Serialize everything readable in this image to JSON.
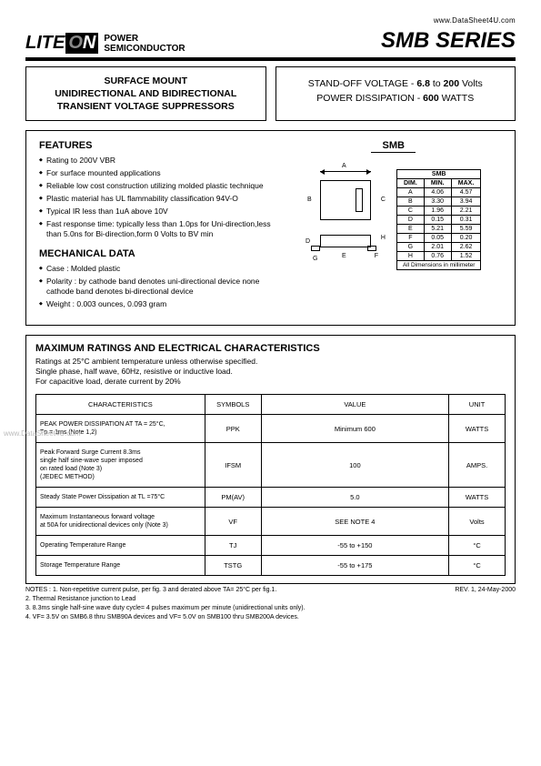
{
  "url": "www.DataSheet4U.com",
  "logo": {
    "t1": "LITE",
    "t2": "N",
    "sub1": "POWER",
    "sub2": "SEMICONDUCTOR"
  },
  "series": "SMB SERIES",
  "box1": {
    "l1": "SURFACE MOUNT",
    "l2": "UNIDIRECTIONAL AND BIDIRECTIONAL",
    "l3": "TRANSIENT VOLTAGE SUPPRESSORS"
  },
  "box2": {
    "l1a": "STAND-OFF VOLTAGE - ",
    "l1b": "6.8",
    "l1c": " to ",
    "l1d": "200",
    "l1e": " Volts",
    "l2a": "POWER DISSIPATION  - ",
    "l2b": "600",
    "l2c": " WATTS"
  },
  "features_h": "FEATURES",
  "features": [
    "Rating to 200V VBR",
    "For surface mounted applications",
    "Reliable low cost construction utilizing molded plastic technique",
    "Plastic material has UL flammability classification 94V-O",
    "Typical IR less than 1uA above 10V",
    "Fast response time: typically less than 1.0ps for Uni-direction,less than 5.0ns for Bi-direction,form 0 Volts to BV min"
  ],
  "mech_h": "MECHANICAL DATA",
  "mech": [
    "Case : Molded plastic",
    "Polarity : by cathode band denotes uni-directional device none cathode band denotes bi-directional device",
    "Weight : 0.003 ounces, 0.093 gram"
  ],
  "smb_label": "SMB",
  "dim_head": "SMB",
  "dim_cols": [
    "DIM.",
    "MIN.",
    "MAX."
  ],
  "dims": [
    [
      "A",
      "4.06",
      "4.57"
    ],
    [
      "B",
      "3.30",
      "3.94"
    ],
    [
      "C",
      "1.96",
      "2.21"
    ],
    [
      "D",
      "0.15",
      "0.31"
    ],
    [
      "E",
      "5.21",
      "5.59"
    ],
    [
      "F",
      "0.05",
      "0.20"
    ],
    [
      "G",
      "2.01",
      "2.62"
    ],
    [
      "H",
      "0.76",
      "1.52"
    ]
  ],
  "dim_note": "All Dimensions in millimeter",
  "pkg_letters": {
    "A": "A",
    "B": "B",
    "C": "C",
    "D": "D",
    "E": "E",
    "F": "F",
    "G": "G",
    "H": "H"
  },
  "ratings_h": "MAXIMUM RATINGS AND ELECTRICAL CHARACTERISTICS",
  "ratings_p": "Ratings at 25°C ambient temperature unless otherwise specified.\nSingle phase, half wave, 60Hz, resistive or inductive load.\nFor capacitive load, derate current by 20%",
  "rhead": [
    "CHARACTERISTICS",
    "SYMBOLS",
    "VALUE",
    "UNIT"
  ],
  "rrows": [
    {
      "c": "PEAK POWER DISSIPATION AT TA = 25°C,\nTp = 1ms (Note 1,2)",
      "s": "PPK",
      "v": "Minimum 600",
      "u": "WATTS"
    },
    {
      "c": "Peak Forward Surge Current 8.3ms\nsingle half sine-wave super imposed\non rated load (Note 3)\n                              (JEDEC METHOD)",
      "s": "IFSM",
      "v": "100",
      "u": "AMPS."
    },
    {
      "c": "Steady State Power Dissipation at TL =75°C",
      "s": "PM(AV)",
      "v": "5.0",
      "u": "WATTS"
    },
    {
      "c": "Maximum Instantaneous forward voltage\nat 50A  for unidirectional devices only (Note 3)",
      "s": "VF",
      "v": "SEE NOTE 4",
      "u": "Volts"
    },
    {
      "c": "Operating Temperature Range",
      "s": "TJ",
      "v": "-55 to +150",
      "u": "°C"
    },
    {
      "c": "Storage Temperature Range",
      "s": "TSTG",
      "v": "-55 to +175",
      "u": "°C"
    }
  ],
  "notes": [
    "NOTES : 1. Non-repetitive current pulse, per fig. 3 and derated above TA= 25°C per fig.1.",
    "              2. Thermal Resistance junction to Lead",
    "              3. 8.3ms single half-sine wave duty cycle= 4 pulses maximum per minute (unidirectional units only).",
    "              4. VF= 3.5V on SMB6.8 thru SMB90A devices and VF= 5.0V on SMB100 thru SMB200A devices."
  ],
  "rev": "REV. 1, 24-May-2000",
  "wm": "www.DataSheet4U.com"
}
